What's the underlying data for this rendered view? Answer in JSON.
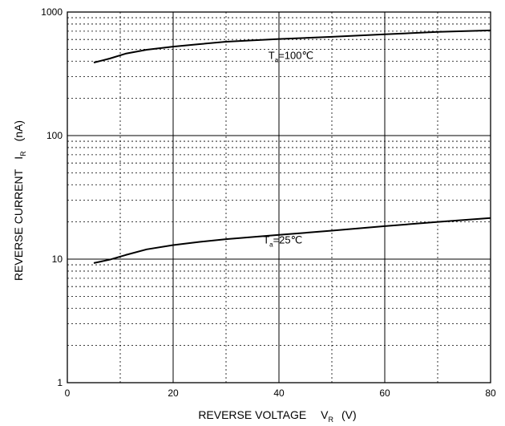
{
  "chart_data": {
    "type": "line",
    "xlabel": {
      "main": "REVERSE VOLTAGE",
      "symbol": "V",
      "subscript": "R",
      "unit": "(V)"
    },
    "ylabel": {
      "main": "REVERSE CURRENT",
      "symbol": "I",
      "subscript": "R",
      "unit": "(nA)"
    },
    "xlim": [
      0,
      80
    ],
    "ylim": [
      1,
      1000
    ],
    "yscale": "log",
    "grid": true,
    "x_ticks": [
      0,
      20,
      40,
      60,
      80
    ],
    "y_ticks": [
      1,
      10,
      100,
      1000
    ],
    "series": [
      {
        "annotation": {
          "symbol": "T",
          "subscript": "a",
          "value": "=100℃"
        },
        "x": [
          5,
          8,
          11,
          15,
          20,
          25,
          30,
          40,
          50,
          60,
          70,
          80
        ],
        "y": [
          390,
          420,
          460,
          495,
          525,
          550,
          575,
          605,
          630,
          660,
          690,
          710
        ]
      },
      {
        "annotation": {
          "symbol": "T",
          "subscript": "a",
          "value": "=25℃"
        },
        "x": [
          5,
          8,
          11,
          15,
          20,
          25,
          30,
          40,
          50,
          60,
          70,
          80
        ],
        "y": [
          9.3,
          9.9,
          10.8,
          12,
          13,
          13.8,
          14.5,
          15.7,
          17,
          18.5,
          20,
          21.5
        ]
      }
    ]
  }
}
